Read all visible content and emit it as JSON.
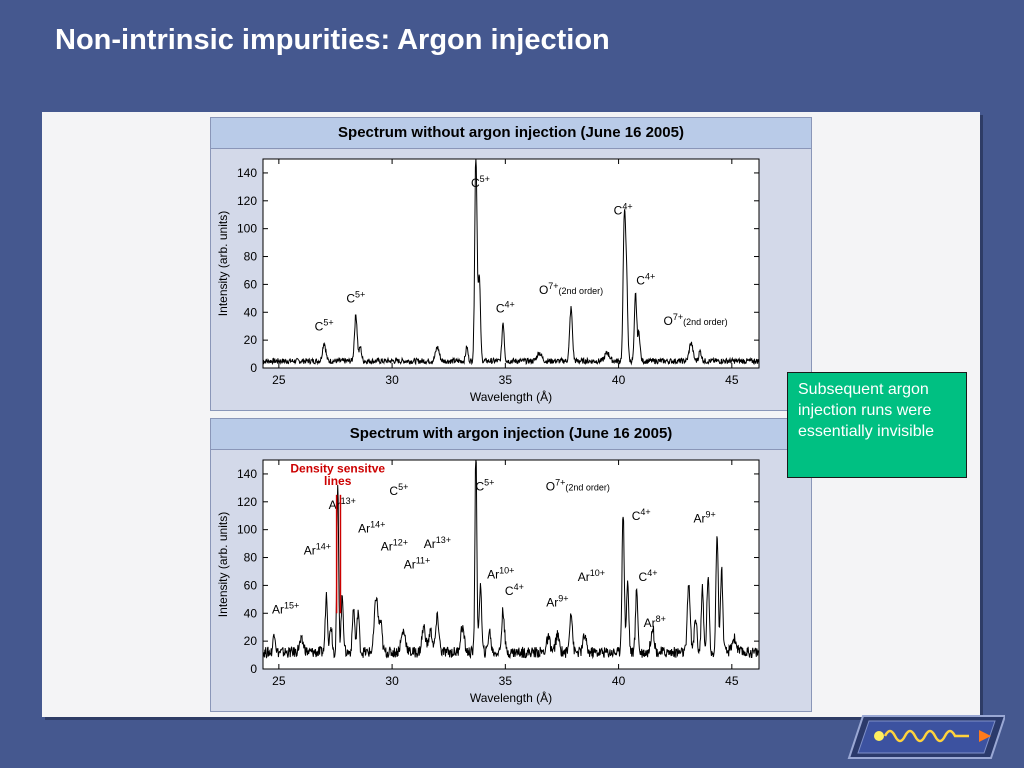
{
  "slide": {
    "title": "Non-intrinsic impurities: Argon injection",
    "note": "Subsequent argon injection runs were essentially invisible",
    "density_label_line1": "Density sensitve",
    "density_label_line2": "lines"
  },
  "colors": {
    "background": "#45588f",
    "note_box": "#00c082",
    "panel": "#d3d9e9",
    "panel_header": "#b9cbe8",
    "density_label": "#cc0000"
  },
  "chart_data": [
    {
      "type": "line",
      "title": "Spectrum without argon injection (June 16 2005)",
      "xlabel": "Wavelength (Å)",
      "ylabel": "Intensity (arb. units)",
      "xlim": [
        24.3,
        46.2
      ],
      "ylim": [
        0,
        150
      ],
      "x_ticks": [
        25,
        30,
        35,
        40,
        45
      ],
      "y_ticks": [
        0,
        20,
        40,
        60,
        80,
        100,
        120,
        140
      ],
      "baseline": 5,
      "peaks": [
        [
          27.0,
          13,
          0.07
        ],
        [
          28.4,
          33,
          0.06
        ],
        [
          28.6,
          10,
          0.05
        ],
        [
          32.0,
          10,
          0.08
        ],
        [
          33.3,
          10,
          0.05
        ],
        [
          33.7,
          150,
          0.05
        ],
        [
          33.85,
          60,
          0.05
        ],
        [
          34.9,
          28,
          0.05
        ],
        [
          36.5,
          6,
          0.1
        ],
        [
          37.9,
          38,
          0.06
        ],
        [
          39.5,
          6,
          0.1
        ],
        [
          40.25,
          100,
          0.05
        ],
        [
          40.35,
          60,
          0.05
        ],
        [
          40.75,
          48,
          0.05
        ],
        [
          40.9,
          20,
          0.05
        ],
        [
          43.2,
          13,
          0.08
        ],
        [
          43.6,
          7,
          0.06
        ]
      ],
      "annotations": [
        {
          "ion": "C",
          "charge": "5+",
          "x": 27.0,
          "y": 27
        },
        {
          "ion": "C",
          "charge": "5+",
          "x": 28.4,
          "y": 47
        },
        {
          "ion": "C",
          "charge": "5+",
          "x": 33.9,
          "y": 130
        },
        {
          "ion": "C",
          "charge": "4+",
          "x": 35.0,
          "y": 40
        },
        {
          "ion": "O",
          "charge": "7+",
          "suffix": "(2nd order)",
          "x": 37.9,
          "y": 53
        },
        {
          "ion": "C",
          "charge": "4+",
          "x": 40.2,
          "y": 110
        },
        {
          "ion": "C",
          "charge": "4+",
          "x": 41.2,
          "y": 60
        },
        {
          "ion": "O",
          "charge": "7+",
          "suffix": "(2nd order)",
          "x": 43.4,
          "y": 31
        }
      ]
    },
    {
      "type": "line",
      "title": "Spectrum with argon injection (June 16 2005)",
      "xlabel": "Wavelength (Å)",
      "ylabel": "Intensity (arb. units)",
      "xlim": [
        24.3,
        46.2
      ],
      "ylim": [
        0,
        150
      ],
      "x_ticks": [
        25,
        30,
        35,
        40,
        45
      ],
      "y_ticks": [
        0,
        20,
        40,
        60,
        80,
        100,
        120,
        140
      ],
      "baseline": 12,
      "peaks": [
        [
          24.8,
          15,
          0.05
        ],
        [
          26.0,
          8,
          0.1
        ],
        [
          27.1,
          42,
          0.05
        ],
        [
          27.3,
          20,
          0.05
        ],
        [
          27.6,
          120,
          0.04
        ],
        [
          27.8,
          40,
          0.05
        ],
        [
          28.3,
          32,
          0.05
        ],
        [
          28.5,
          30,
          0.05
        ],
        [
          29.3,
          40,
          0.08
        ],
        [
          29.5,
          20,
          0.06
        ],
        [
          30.5,
          15,
          0.1
        ],
        [
          31.4,
          18,
          0.08
        ],
        [
          31.7,
          15,
          0.08
        ],
        [
          32.0,
          25,
          0.07
        ],
        [
          33.1,
          18,
          0.08
        ],
        [
          33.7,
          150,
          0.04
        ],
        [
          33.9,
          50,
          0.05
        ],
        [
          34.3,
          15,
          0.06
        ],
        [
          34.9,
          30,
          0.06
        ],
        [
          36.9,
          10,
          0.08
        ],
        [
          37.3,
          12,
          0.08
        ],
        [
          37.9,
          30,
          0.06
        ],
        [
          38.5,
          12,
          0.07
        ],
        [
          40.2,
          100,
          0.05
        ],
        [
          40.4,
          50,
          0.05
        ],
        [
          40.8,
          45,
          0.05
        ],
        [
          41.5,
          18,
          0.07
        ],
        [
          43.1,
          50,
          0.06
        ],
        [
          43.4,
          25,
          0.06
        ],
        [
          43.7,
          45,
          0.05
        ],
        [
          43.95,
          55,
          0.05
        ],
        [
          44.35,
          85,
          0.05
        ],
        [
          44.55,
          60,
          0.05
        ],
        [
          45.1,
          10,
          0.1
        ]
      ],
      "annotations": [
        {
          "ion": "Ar",
          "charge": "15+",
          "x": 25.3,
          "y": 40
        },
        {
          "ion": "Ar",
          "charge": "14+",
          "x": 26.7,
          "y": 82
        },
        {
          "ion": "Ar",
          "charge": "13+",
          "x": 27.8,
          "y": 115
        },
        {
          "ion": "Ar",
          "charge": "14+",
          "x": 29.1,
          "y": 98
        },
        {
          "ion": "C",
          "charge": "5+",
          "x": 30.3,
          "y": 125
        },
        {
          "ion": "Ar",
          "charge": "12+",
          "x": 30.1,
          "y": 85
        },
        {
          "ion": "Ar",
          "charge": "11+",
          "x": 31.1,
          "y": 72
        },
        {
          "ion": "Ar",
          "charge": "13+",
          "x": 32.0,
          "y": 87
        },
        {
          "ion": "C",
          "charge": "5+",
          "x": 34.1,
          "y": 128
        },
        {
          "ion": "Ar",
          "charge": "10+",
          "x": 34.8,
          "y": 65
        },
        {
          "ion": "C",
          "charge": "4+",
          "x": 35.4,
          "y": 53
        },
        {
          "ion": "O",
          "charge": "7+",
          "suffix": "(2nd order)",
          "x": 38.2,
          "y": 128
        },
        {
          "ion": "Ar",
          "charge": "9+",
          "x": 37.3,
          "y": 45
        },
        {
          "ion": "Ar",
          "charge": "10+",
          "x": 38.8,
          "y": 63
        },
        {
          "ion": "C",
          "charge": "4+",
          "x": 41.0,
          "y": 107
        },
        {
          "ion": "C",
          "charge": "4+",
          "x": 41.3,
          "y": 63
        },
        {
          "ion": "Ar",
          "charge": "8+",
          "x": 41.6,
          "y": 30
        },
        {
          "ion": "Ar",
          "charge": "9+",
          "x": 43.8,
          "y": 105
        }
      ]
    }
  ]
}
